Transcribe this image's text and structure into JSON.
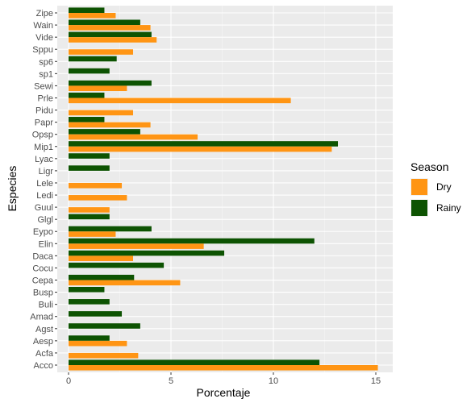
{
  "chart_data": {
    "type": "bar",
    "orientation": "horizontal",
    "xlabel": "Porcentaje",
    "ylabel": "Especies",
    "xlim": [
      0,
      16
    ],
    "x_ticks": [
      0,
      5,
      10,
      15
    ],
    "categories": [
      "Zipe",
      "Wain",
      "Vide",
      "Sppu",
      "sp6",
      "sp1",
      "Sewi",
      "Prle",
      "Pidu",
      "Papr",
      "Opsp",
      "Mip1",
      "Lyac",
      "Ligr",
      "Lele",
      "Ledi",
      "Guul",
      "Glgl",
      "Eypo",
      "Elin",
      "Daca",
      "Cocu",
      "Cepa",
      "Busp",
      "Buli",
      "Amad",
      "Agst",
      "Aesp",
      "Acfa",
      "Acco"
    ],
    "series": [
      {
        "name": "Rainy",
        "color": "#0d5302",
        "values": [
          1.75,
          3.5,
          4.05,
          0,
          2.35,
          2.0,
          4.05,
          1.75,
          0,
          1.75,
          3.5,
          13.15,
          2.0,
          2.0,
          0,
          0,
          0,
          2.0,
          4.05,
          12.0,
          7.6,
          4.65,
          3.2,
          1.75,
          2.0,
          2.6,
          3.5,
          2.0,
          0,
          12.25
        ]
      },
      {
        "name": "Dry",
        "color": "#ff9514",
        "values": [
          2.3,
          4.0,
          4.3,
          3.15,
          0,
          0,
          2.85,
          10.85,
          3.15,
          4.0,
          6.3,
          12.85,
          0,
          0,
          2.6,
          2.85,
          2.0,
          0,
          2.3,
          6.6,
          3.15,
          0,
          5.45,
          0,
          0,
          0,
          0,
          2.85,
          3.4,
          15.1
        ]
      }
    ],
    "grid": true,
    "legend": {
      "title": "Season",
      "position": "right",
      "entries": [
        "Dry",
        "Rainy"
      ]
    }
  }
}
